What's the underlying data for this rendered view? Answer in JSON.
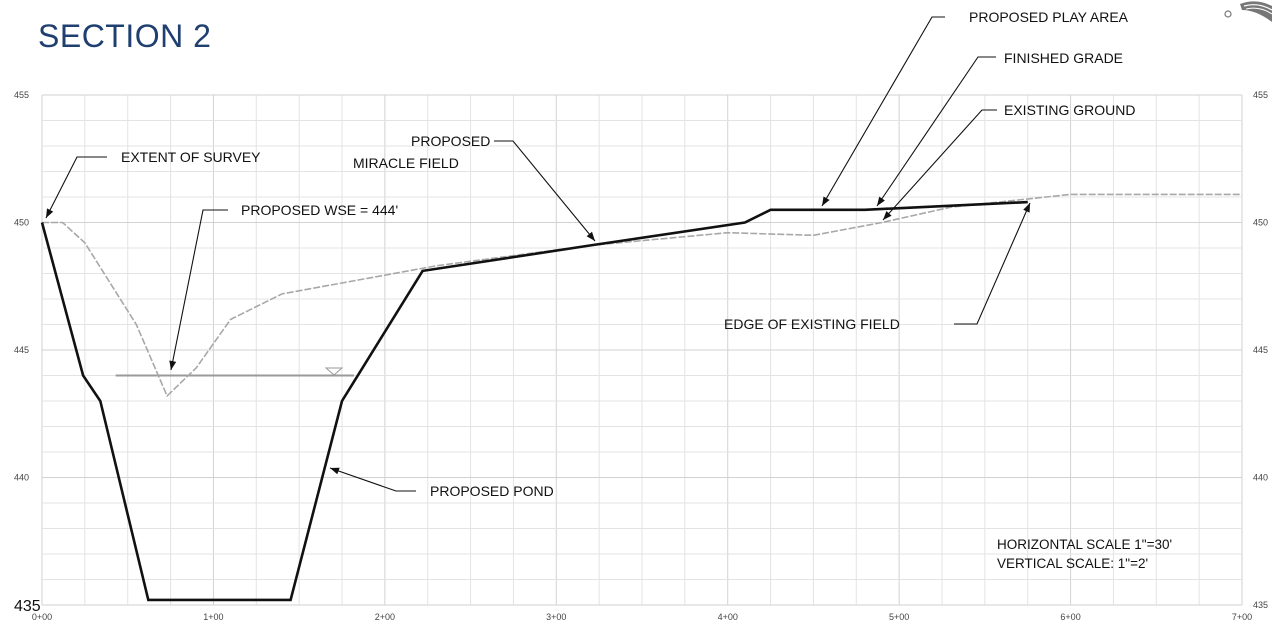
{
  "title": "SECTION 2",
  "scale_notes": {
    "horizontal": "HORIZONTAL SCALE 1\"=30'",
    "vertical": "VERTICAL SCALE: 1\"=2'"
  },
  "axes": {
    "x_labels": [
      "0+00",
      "1+00",
      "2+00",
      "3+00",
      "4+00",
      "5+00",
      "6+00",
      "7+00"
    ],
    "y_labels_left": [
      "455",
      "450",
      "445",
      "440"
    ],
    "y_labels_right": [
      "455",
      "450",
      "445",
      "440",
      "435"
    ],
    "y_bottom_left": "435",
    "x_range": [
      0,
      700
    ],
    "y_range": [
      435,
      455
    ]
  },
  "callouts": {
    "play_area": "PROPOSED PLAY AREA",
    "finished_grade": "FINISHED GRADE",
    "existing_ground": "EXISTING GROUND",
    "miracle_field_1": "PROPOSED",
    "miracle_field_2": "MIRACLE FIELD",
    "extent_of_survey": "EXTENT OF SURVEY",
    "wse": "PROPOSED WSE = 444'",
    "edge_field": "EDGE OF EXISTING FIELD",
    "pond": "PROPOSED POND"
  },
  "profiles": {
    "finished_grade": [
      [
        0,
        450
      ],
      [
        24,
        444
      ],
      [
        34,
        443
      ],
      [
        62,
        435.2
      ],
      [
        145,
        435.2
      ],
      [
        175,
        443
      ],
      [
        222,
        448.1
      ],
      [
        320,
        449.1
      ],
      [
        410,
        450
      ],
      [
        425,
        450.5
      ],
      [
        480,
        450.5
      ],
      [
        575,
        450.8
      ]
    ],
    "existing_ground": [
      [
        0,
        450
      ],
      [
        12,
        450
      ],
      [
        25,
        449.2
      ],
      [
        55,
        446
      ],
      [
        73,
        443.2
      ],
      [
        90,
        444.3
      ],
      [
        110,
        446.2
      ],
      [
        140,
        447.2
      ],
      [
        230,
        448.3
      ],
      [
        320,
        449.1
      ],
      [
        400,
        449.6
      ],
      [
        450,
        449.5
      ],
      [
        490,
        450
      ],
      [
        530,
        450.6
      ],
      [
        600,
        451.1
      ],
      [
        700,
        451.1
      ]
    ],
    "water_surface": [
      [
        43,
        444
      ],
      [
        182,
        444
      ]
    ]
  }
}
